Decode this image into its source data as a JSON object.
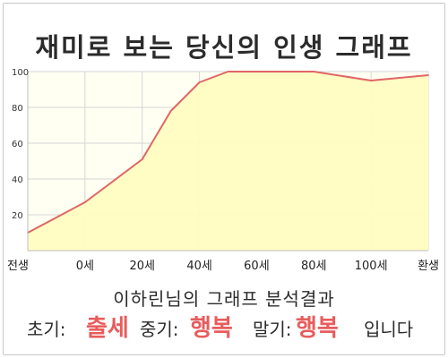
{
  "title": "재미로 보는 당신의 인생 그래프",
  "summary": "이하린님의 그래프 분석결과",
  "result": {
    "early_label": "초기:",
    "early_value": "출세",
    "mid_label": "중기:",
    "mid_value": "행복",
    "late_label": "말기:",
    "late_value": "행복",
    "suffix": "입니다"
  },
  "colors": {
    "fill": "#fffdc0",
    "line": "#e06666",
    "grid": "#d6d6d6",
    "highlight": "#e85c5c"
  },
  "chart_data": {
    "type": "area",
    "title": "재미로 보는 당신의 인생 그래프",
    "xlabel": "",
    "ylabel": "",
    "ylim": [
      0,
      100
    ],
    "yticks": [
      20,
      40,
      60,
      80,
      100
    ],
    "xtick_labels": [
      "전생",
      "0세",
      "20세",
      "40세",
      "60세",
      "80세",
      "100세",
      "환생"
    ],
    "points": [
      {
        "x": 0,
        "y": 10
      },
      {
        "x": 1,
        "y": 27
      },
      {
        "x": 2,
        "y": 51
      },
      {
        "x": 2.5,
        "y": 78
      },
      {
        "x": 3,
        "y": 94
      },
      {
        "x": 3.5,
        "y": 100
      },
      {
        "x": 4,
        "y": 100
      },
      {
        "x": 5,
        "y": 100
      },
      {
        "x": 6,
        "y": 95
      },
      {
        "x": 7,
        "y": 98
      }
    ],
    "grid": true,
    "legend": "none"
  }
}
